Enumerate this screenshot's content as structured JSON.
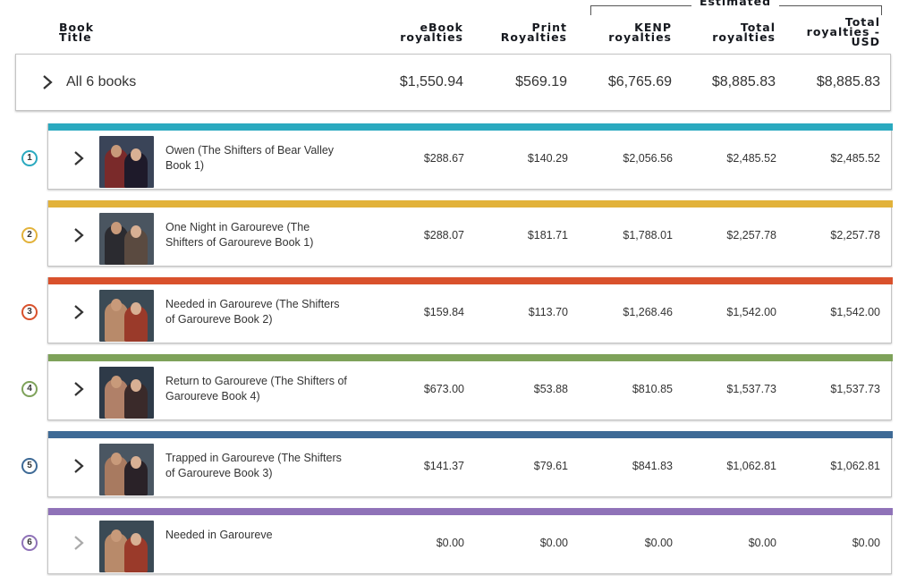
{
  "header": {
    "estimated": "Estimated",
    "col_title": [
      "Book",
      "Title"
    ],
    "col_ebook": [
      "eBook",
      "royalties"
    ],
    "col_print": [
      "Print",
      "Royalties"
    ],
    "col_kenp": [
      "KENP",
      "royalties"
    ],
    "col_total": [
      "Total",
      "royalties"
    ],
    "col_usd": [
      "Total",
      "royalties -",
      "USD"
    ]
  },
  "summary": {
    "label": "All 6 books",
    "ebook": "$1,550.94",
    "print": "$569.19",
    "kenp": "$6,765.69",
    "total": "$8,885.83",
    "usd": "$8,885.83"
  },
  "books": [
    {
      "rank": "1",
      "color": "#2aa9bf",
      "title": "Owen (The Shifters of Bear Valley Book 1)",
      "ebook": "$288.67",
      "print": "$140.29",
      "kenp": "$2,056.56",
      "total": "$2,485.52",
      "usd": "$2,485.52",
      "cover_bg": "#3a4458",
      "cover_a": "#7a2a2a",
      "cover_b": "#1e1a2a"
    },
    {
      "rank": "2",
      "color": "#e2b23a",
      "title": "One Night in Garoureve (The Shifters of Garoureve Book 1)",
      "ebook": "$288.07",
      "print": "$181.71",
      "kenp": "$1,788.01",
      "total": "$2,257.78",
      "usd": "$2,257.78",
      "cover_bg": "#4a5560",
      "cover_a": "#2b2b30",
      "cover_b": "#5a4a40"
    },
    {
      "rank": "3",
      "color": "#d9512c",
      "title": "Needed in Garoureve (The Shifters of Garoureve Book 2)",
      "ebook": "$159.84",
      "print": "$113.70",
      "kenp": "$1,268.46",
      "total": "$1,542.00",
      "usd": "$1,542.00",
      "cover_bg": "#3b4a55",
      "cover_a": "#b88a6a",
      "cover_b": "#9a3a2a"
    },
    {
      "rank": "4",
      "color": "#7ea25a",
      "title": "Return to Garoureve (The Shifters of Garoureve Book 4)",
      "ebook": "$673.00",
      "print": "$53.88",
      "kenp": "$810.85",
      "total": "$1,537.73",
      "usd": "$1,537.73",
      "cover_bg": "#2e3a48",
      "cover_a": "#b08068",
      "cover_b": "#3a2a2a"
    },
    {
      "rank": "5",
      "color": "#3e6a96",
      "title": "Trapped in Garoureve (The Shifters of Garoureve Book 3)",
      "ebook": "$141.37",
      "print": "$79.61",
      "kenp": "$841.83",
      "total": "$1,062.81",
      "usd": "$1,062.81",
      "cover_bg": "#4a5662",
      "cover_a": "#a87a60",
      "cover_b": "#2a2228"
    },
    {
      "rank": "6",
      "color": "#8f72b8",
      "title": "Needed in Garoureve",
      "ebook": "$0.00",
      "print": "$0.00",
      "kenp": "$0.00",
      "total": "$0.00",
      "usd": "$0.00",
      "cover_bg": "#3b4a55",
      "cover_a": "#b88a6a",
      "cover_b": "#9a3a2a"
    }
  ]
}
